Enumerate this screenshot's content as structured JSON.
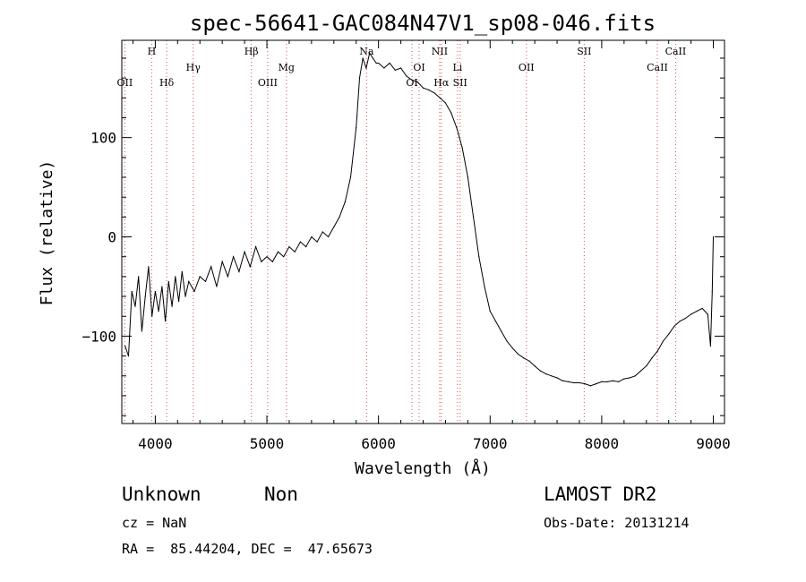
{
  "chart_data": {
    "type": "line",
    "title": "spec-56641-GAC084N47V1_sp08-046.fits",
    "xlabel": "Wavelength (Å)",
    "ylabel": "Flux (relative)",
    "xlim": [
      3700,
      9100
    ],
    "ylim": [
      -188,
      198
    ],
    "x_ticks": [
      4000,
      5000,
      6000,
      7000,
      8000,
      9000
    ],
    "y_ticks": [
      -100,
      0,
      100
    ],
    "grid": false,
    "series": [
      {
        "x": [
          3730,
          3760,
          3790,
          3820,
          3850,
          3880,
          3910,
          3940,
          3970,
          4000,
          4030,
          4060,
          4090,
          4120,
          4150,
          4180,
          4210,
          4240,
          4270,
          4300,
          4350,
          4400,
          4450,
          4500,
          4550,
          4600,
          4650,
          4700,
          4750,
          4800,
          4850,
          4900,
          4950,
          5000,
          5050,
          5100,
          5150,
          5200,
          5250,
          5300,
          5350,
          5400,
          5450,
          5500,
          5550,
          5600,
          5650,
          5700,
          5750,
          5800,
          5830,
          5860,
          5890,
          5920,
          5950,
          5980,
          6000,
          6050,
          6100,
          6150,
          6200,
          6250,
          6300,
          6350,
          6400,
          6450,
          6500,
          6550,
          6600,
          6650,
          6700,
          6750,
          6800,
          6850,
          6900,
          6950,
          7000,
          7050,
          7100,
          7150,
          7200,
          7250,
          7300,
          7350,
          7400,
          7450,
          7500,
          7550,
          7600,
          7650,
          7700,
          7750,
          7800,
          7850,
          7900,
          7950,
          8000,
          8050,
          8100,
          8150,
          8200,
          8250,
          8300,
          8350,
          8400,
          8450,
          8500,
          8550,
          8600,
          8650,
          8700,
          8750,
          8800,
          8850,
          8900,
          8950,
          8975,
          8990,
          9000
        ],
        "y": [
          -110,
          -120,
          -55,
          -70,
          -40,
          -95,
          -60,
          -30,
          -80,
          -55,
          -75,
          -50,
          -85,
          -45,
          -70,
          -40,
          -65,
          -35,
          -60,
          -45,
          -55,
          -40,
          -45,
          -30,
          -50,
          -25,
          -40,
          -20,
          -35,
          -15,
          -30,
          -10,
          -25,
          -20,
          -25,
          -15,
          -20,
          -10,
          -15,
          -5,
          -10,
          0,
          -5,
          5,
          0,
          10,
          20,
          35,
          60,
          110,
          160,
          180,
          170,
          185,
          180,
          175,
          175,
          170,
          175,
          168,
          170,
          162,
          158,
          156,
          150,
          148,
          145,
          140,
          135,
          125,
          110,
          90,
          60,
          20,
          -20,
          -50,
          -75,
          -85,
          -95,
          -105,
          -112,
          -118,
          -122,
          -125,
          -130,
          -135,
          -138,
          -140,
          -142,
          -145,
          -146,
          -147,
          -147,
          -148,
          -150,
          -148,
          -146,
          -146,
          -145,
          -146,
          -143,
          -142,
          -140,
          -135,
          -130,
          -122,
          -115,
          -105,
          -98,
          -90,
          -85,
          -82,
          -78,
          -75,
          -72,
          -78,
          -110,
          -55,
          0
        ]
      }
    ],
    "lines": [
      {
        "label": "OII",
        "x": 3727,
        "row": 3
      },
      {
        "label": "H",
        "x": 3968,
        "row": 1
      },
      {
        "label": "Hδ",
        "x": 4102,
        "row": 3
      },
      {
        "label": "Hγ",
        "x": 4340,
        "row": 2
      },
      {
        "label": "Hβ",
        "x": 4861,
        "row": 1
      },
      {
        "label": "OIII",
        "x": 5007,
        "row": 3
      },
      {
        "label": "Mg",
        "x": 5175,
        "row": 2
      },
      {
        "label": "Na",
        "x": 5893,
        "row": 1
      },
      {
        "label": "OI",
        "x": 6300,
        "row": 3
      },
      {
        "label": "OI",
        "x": 6364,
        "row": 2
      },
      {
        "label": "NII",
        "x": 6548,
        "row": 1
      },
      {
        "label": "Hα",
        "x": 6563,
        "row": 3
      },
      {
        "label": "Li",
        "x": 6708,
        "row": 2
      },
      {
        "label": "SII",
        "x": 6731,
        "row": 3
      },
      {
        "label": "OII",
        "x": 7325,
        "row": 2
      },
      {
        "label": "SII",
        "x": 7843,
        "row": 1
      },
      {
        "label": "CaII",
        "x": 8498,
        "row": 2
      },
      {
        "label": "CaII",
        "x": 8662,
        "row": 1
      }
    ]
  },
  "info": {
    "class": "Unknown",
    "subclass": "Non",
    "survey": "LAMOST DR2",
    "cz": "cz = NaN",
    "obs_date": "Obs-Date: 20131214",
    "coords": "RA =  85.44204, DEC =  47.65673"
  }
}
